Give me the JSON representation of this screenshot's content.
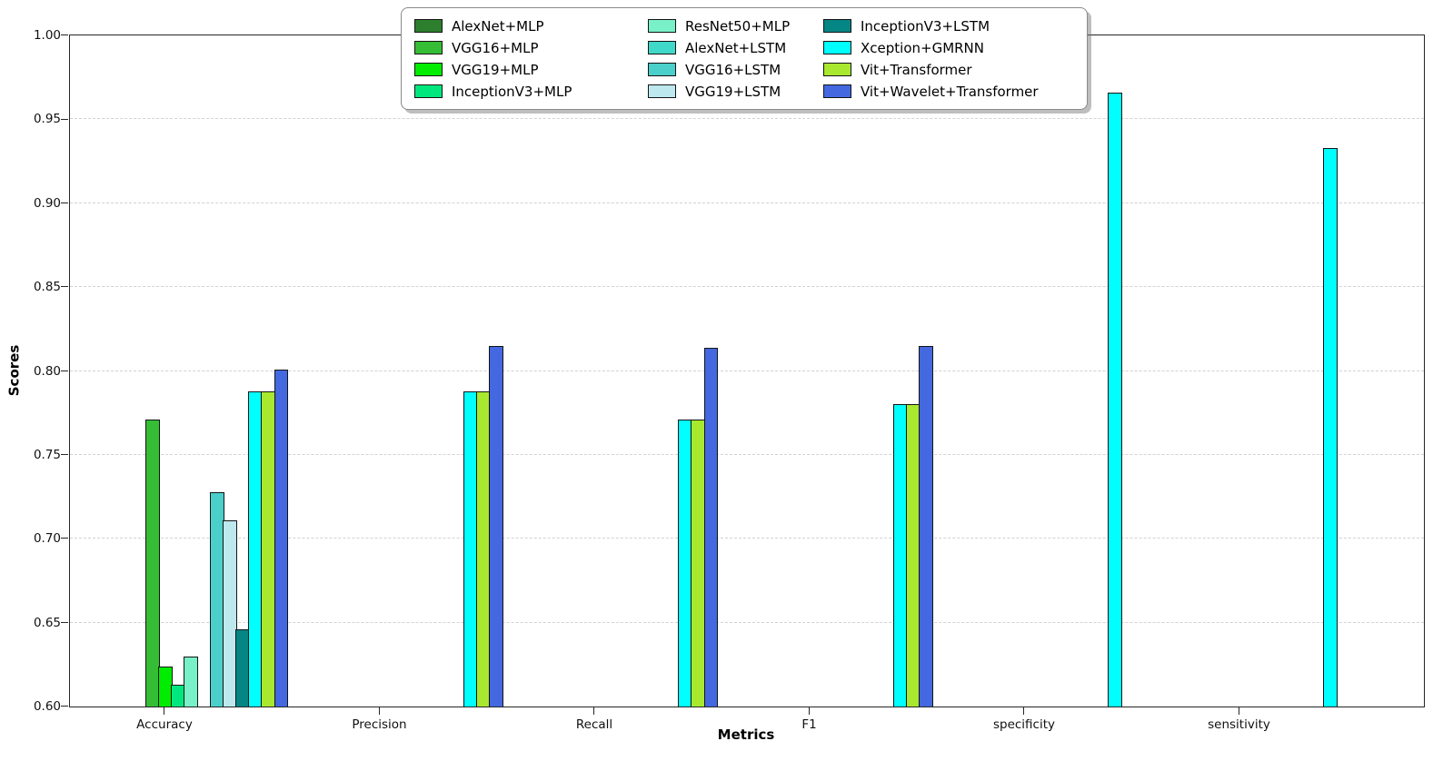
{
  "chart_data": {
    "type": "bar",
    "title": "",
    "xlabel": "Metrics",
    "ylabel": "Scores",
    "ylim": [
      0.6,
      1.0
    ],
    "yticks": [
      0.6,
      0.65,
      0.7,
      0.75,
      0.8,
      0.85,
      0.9,
      0.95,
      1.0
    ],
    "ytick_format_decimals": 2,
    "grid": "horizontal dashed",
    "legend_position": "upper center, 3 columns",
    "bar_edge_color": "#141414",
    "categories": [
      "Accuracy",
      "Precision",
      "Recall",
      "F1",
      "specificity",
      "sensitivity"
    ],
    "series": [
      {
        "name": "AlexNet+MLP",
        "color": "#2d7f2d",
        "values": [
          null,
          null,
          null,
          null,
          null,
          null
        ]
      },
      {
        "name": "VGG16+MLP",
        "color": "#35bd35",
        "values": [
          0.771,
          null,
          null,
          null,
          null,
          null
        ]
      },
      {
        "name": "VGG19+MLP",
        "color": "#00ec00",
        "values": [
          0.624,
          null,
          null,
          null,
          null,
          null
        ]
      },
      {
        "name": "InceptionV3+MLP",
        "color": "#00e87d",
        "values": [
          0.613,
          null,
          null,
          null,
          null,
          null
        ]
      },
      {
        "name": "ResNet50+MLP",
        "color": "#78f0c8",
        "values": [
          0.63,
          null,
          null,
          null,
          null,
          null
        ]
      },
      {
        "name": "AlexNet+LSTM",
        "color": "#40d8c8",
        "values": [
          null,
          null,
          null,
          null,
          null,
          null
        ]
      },
      {
        "name": "VGG16+LSTM",
        "color": "#4bcfca",
        "values": [
          0.728,
          null,
          null,
          null,
          null,
          null
        ]
      },
      {
        "name": "VGG19+LSTM",
        "color": "#bce8ee",
        "values": [
          0.711,
          null,
          null,
          null,
          null,
          null
        ]
      },
      {
        "name": "InceptionV3+LSTM",
        "color": "#068585",
        "values": [
          0.646,
          null,
          null,
          null,
          null,
          null
        ]
      },
      {
        "name": "Xception+GMRNN",
        "color": "#00ffff",
        "values": [
          0.788,
          0.788,
          0.771,
          0.78,
          0.966,
          0.933
        ]
      },
      {
        "name": "Vit+Transformer",
        "color": "#a8e82f",
        "values": [
          0.788,
          0.788,
          0.771,
          0.78,
          null,
          null
        ]
      },
      {
        "name": "Vit+Wavelet+Transformer",
        "color": "#4468e0",
        "values": [
          0.801,
          0.815,
          0.814,
          0.815,
          null,
          null
        ]
      }
    ]
  }
}
